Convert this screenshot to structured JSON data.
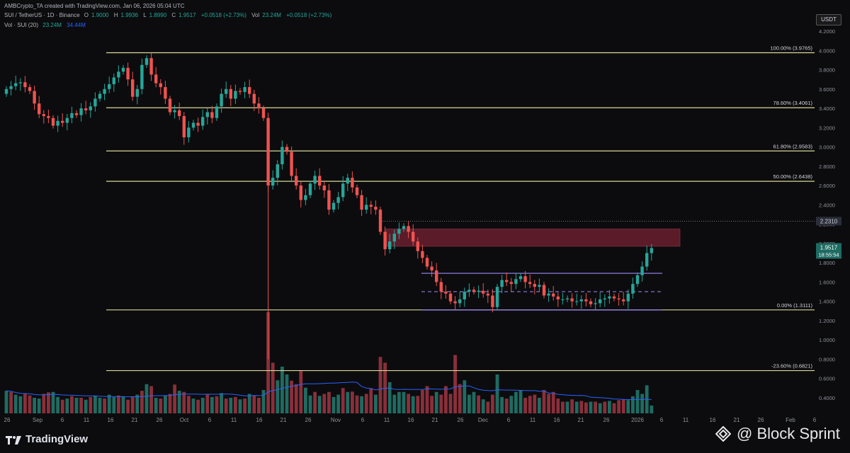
{
  "header": {
    "attribution": "AMBCrypto_TA created with TradingView.com, Jan 06, 2026 05:04 UTC",
    "symbol": "SUI / TetherUS · 1D · Binance",
    "ohlc": {
      "o_label": "O",
      "o": "1.9000",
      "h_label": "H",
      "h": "1.9936",
      "l_label": "L",
      "l": "1.8990",
      "c_label": "C",
      "c": "1.9517",
      "change": "+0.0518 (+2.73%)",
      "vol_label": "Vol",
      "vol": "23.24M",
      "vol_change": "+0.0518 (+2.73%)"
    },
    "vol_indicator": {
      "label": "Vol · SUI (20)",
      "v1": "23.24M",
      "v2": "34.44M"
    }
  },
  "currency_label": "USDT",
  "brand_tv": "TradingView",
  "brand_bs": "@ Block Sprint",
  "colors": {
    "up": "#26a69a",
    "down": "#ef5350",
    "fib": "#d8d89a",
    "range": "#8c7ce0",
    "zone": "#6b1f2e",
    "vol_ma": "#2962ff"
  },
  "chart_data": {
    "type": "candlestick",
    "ylim": [
      0.28,
      4.22
    ],
    "y_ticks": [
      "4.2000",
      "4.0000",
      "3.8000",
      "3.6000",
      "3.4000",
      "3.2000",
      "3.0000",
      "2.8000",
      "2.6000",
      "2.4000",
      "2.2000",
      "2.0000",
      "1.8000",
      "1.6000",
      "1.4000",
      "1.2000",
      "1.0000",
      "0.8000",
      "0.6000",
      "0.4000"
    ],
    "x_ticks": [
      "26",
      "Sep",
      "6",
      "11",
      "16",
      "21",
      "26",
      "Oct",
      "6",
      "11",
      "16",
      "21",
      "26",
      "Nov",
      "6",
      "11",
      "16",
      "21",
      "26",
      "Dec",
      "6",
      "11",
      "16",
      "21",
      "26",
      "2026",
      "6",
      "11",
      "16",
      "21",
      "26",
      "Feb",
      "6"
    ],
    "closes": [
      3.6,
      3.63,
      3.66,
      3.67,
      3.62,
      3.58,
      3.45,
      3.34,
      3.32,
      3.3,
      3.22,
      3.27,
      3.25,
      3.3,
      3.35,
      3.33,
      3.4,
      3.38,
      3.42,
      3.5,
      3.55,
      3.6,
      3.65,
      3.72,
      3.78,
      3.82,
      3.7,
      3.52,
      3.6,
      3.85,
      3.92,
      3.75,
      3.66,
      3.62,
      3.5,
      3.36,
      3.38,
      3.32,
      3.1,
      3.2,
      3.25,
      3.22,
      3.31,
      3.36,
      3.3,
      3.42,
      3.55,
      3.6,
      3.5,
      3.58,
      3.57,
      3.62,
      3.55,
      3.45,
      3.4,
      3.3,
      2.6,
      2.68,
      2.82,
      3.0,
      2.95,
      2.7,
      2.6,
      2.45,
      2.5,
      2.62,
      2.7,
      2.6,
      2.55,
      2.35,
      2.42,
      2.48,
      2.62,
      2.68,
      2.58,
      2.5,
      2.35,
      2.4,
      2.38,
      2.35,
      2.12,
      1.94,
      2.02,
      2.1,
      2.15,
      2.18,
      2.12,
      2.02,
      1.92,
      1.85,
      1.76,
      1.72,
      1.6,
      1.5,
      1.48,
      1.4,
      1.38,
      1.42,
      1.5,
      1.52,
      1.5,
      1.51,
      1.48,
      1.46,
      1.34,
      1.55,
      1.62,
      1.6,
      1.58,
      1.63,
      1.66,
      1.6,
      1.58,
      1.55,
      1.57,
      1.46,
      1.48,
      1.45,
      1.42,
      1.42,
      1.43,
      1.4,
      1.4,
      1.42,
      1.4,
      1.37,
      1.38,
      1.42,
      1.43,
      1.45,
      1.43,
      1.42,
      1.4,
      1.48,
      1.58,
      1.67,
      1.76,
      1.9,
      1.9517
    ],
    "volumes": [
      [
        58,
        "up"
      ],
      [
        55,
        "down"
      ],
      [
        48,
        "up"
      ],
      [
        44,
        "up"
      ],
      [
        50,
        "down"
      ],
      [
        46,
        "down"
      ],
      [
        40,
        "up"
      ],
      [
        38,
        "up"
      ],
      [
        50,
        "down"
      ],
      [
        54,
        "down"
      ],
      [
        55,
        "up"
      ],
      [
        42,
        "up"
      ],
      [
        35,
        "down"
      ],
      [
        38,
        "up"
      ],
      [
        44,
        "down"
      ],
      [
        40,
        "up"
      ],
      [
        40,
        "down"
      ],
      [
        35,
        "up"
      ],
      [
        42,
        "down"
      ],
      [
        45,
        "up"
      ],
      [
        40,
        "up"
      ],
      [
        38,
        "down"
      ],
      [
        48,
        "up"
      ],
      [
        42,
        "up"
      ],
      [
        46,
        "down"
      ],
      [
        44,
        "up"
      ],
      [
        35,
        "down"
      ],
      [
        42,
        "down"
      ],
      [
        48,
        "up"
      ],
      [
        58,
        "down"
      ],
      [
        75,
        "up"
      ],
      [
        70,
        "down"
      ],
      [
        40,
        "up"
      ],
      [
        38,
        "down"
      ],
      [
        45,
        "up"
      ],
      [
        50,
        "down"
      ],
      [
        74,
        "down"
      ],
      [
        58,
        "up"
      ],
      [
        55,
        "down"
      ],
      [
        45,
        "down"
      ],
      [
        38,
        "up"
      ],
      [
        35,
        "down"
      ],
      [
        40,
        "up"
      ],
      [
        48,
        "down"
      ],
      [
        42,
        "up"
      ],
      [
        44,
        "down"
      ],
      [
        52,
        "up"
      ],
      [
        38,
        "down"
      ],
      [
        40,
        "up"
      ],
      [
        42,
        "down"
      ],
      [
        36,
        "up"
      ],
      [
        38,
        "down"
      ],
      [
        50,
        "up"
      ],
      [
        46,
        "down"
      ],
      [
        40,
        "down"
      ],
      [
        60,
        "up"
      ],
      [
        260,
        "down"
      ],
      [
        130,
        "down"
      ],
      [
        85,
        "up"
      ],
      [
        120,
        "up"
      ],
      [
        100,
        "up"
      ],
      [
        84,
        "down"
      ],
      [
        75,
        "down"
      ],
      [
        110,
        "down"
      ],
      [
        66,
        "up"
      ],
      [
        46,
        "up"
      ],
      [
        55,
        "down"
      ],
      [
        45,
        "up"
      ],
      [
        50,
        "down"
      ],
      [
        55,
        "down"
      ],
      [
        42,
        "up"
      ],
      [
        48,
        "up"
      ],
      [
        65,
        "down"
      ],
      [
        55,
        "up"
      ],
      [
        56,
        "down"
      ],
      [
        46,
        "down"
      ],
      [
        44,
        "up"
      ],
      [
        50,
        "down"
      ],
      [
        64,
        "down"
      ],
      [
        48,
        "up"
      ],
      [
        145,
        "down"
      ],
      [
        130,
        "down"
      ],
      [
        80,
        "up"
      ],
      [
        48,
        "up"
      ],
      [
        55,
        "up"
      ],
      [
        55,
        "up"
      ],
      [
        50,
        "down"
      ],
      [
        44,
        "up"
      ],
      [
        45,
        "down"
      ],
      [
        60,
        "down"
      ],
      [
        70,
        "down"
      ],
      [
        45,
        "down"
      ],
      [
        55,
        "up"
      ],
      [
        48,
        "down"
      ],
      [
        70,
        "down"
      ],
      [
        50,
        "down"
      ],
      [
        150,
        "down"
      ],
      [
        75,
        "down"
      ],
      [
        85,
        "up"
      ],
      [
        48,
        "up"
      ],
      [
        55,
        "up"
      ],
      [
        46,
        "down"
      ],
      [
        36,
        "up"
      ],
      [
        30,
        "down"
      ],
      [
        48,
        "down"
      ],
      [
        100,
        "up"
      ],
      [
        42,
        "up"
      ],
      [
        38,
        "down"
      ],
      [
        45,
        "up"
      ],
      [
        55,
        "up"
      ],
      [
        60,
        "up"
      ],
      [
        40,
        "down"
      ],
      [
        45,
        "down"
      ],
      [
        48,
        "down"
      ],
      [
        40,
        "up"
      ],
      [
        60,
        "down"
      ],
      [
        50,
        "down"
      ],
      [
        55,
        "down"
      ],
      [
        38,
        "down"
      ],
      [
        30,
        "down"
      ],
      [
        30,
        "up"
      ],
      [
        36,
        "down"
      ],
      [
        30,
        "up"
      ],
      [
        32,
        "down"
      ],
      [
        28,
        "down"
      ],
      [
        30,
        "up"
      ],
      [
        30,
        "down"
      ],
      [
        26,
        "up"
      ],
      [
        30,
        "down"
      ],
      [
        32,
        "up"
      ],
      [
        26,
        "down"
      ],
      [
        34,
        "down"
      ],
      [
        36,
        "down"
      ],
      [
        34,
        "up"
      ],
      [
        44,
        "up"
      ],
      [
        60,
        "up"
      ],
      [
        50,
        "up"
      ],
      [
        72,
        "up"
      ],
      [
        20,
        "up"
      ]
    ],
    "fib_levels": [
      {
        "label": "100.00% (3.9765)",
        "price": 3.9765
      },
      {
        "label": "78.60% (3.4061)",
        "price": 3.4061
      },
      {
        "label": "61.80% (2.9583)",
        "price": 2.9583
      },
      {
        "label": "50.00% (2.6438)",
        "price": 2.6438
      },
      {
        "label": "0.00% (1.3111)",
        "price": 1.3111
      },
      {
        "label": "-23.60% (0.6821)",
        "price": 0.6821
      }
    ],
    "resistance_zone": {
      "price_low": 1.97,
      "price_high": 2.15
    },
    "range_top": 1.69,
    "range_mid": 1.5,
    "range_bottom": 1.31,
    "dotted_level": {
      "price": 2.231,
      "label": "2.2310"
    },
    "last_price": {
      "label": "1.9517",
      "timer": "18:55:54"
    }
  }
}
